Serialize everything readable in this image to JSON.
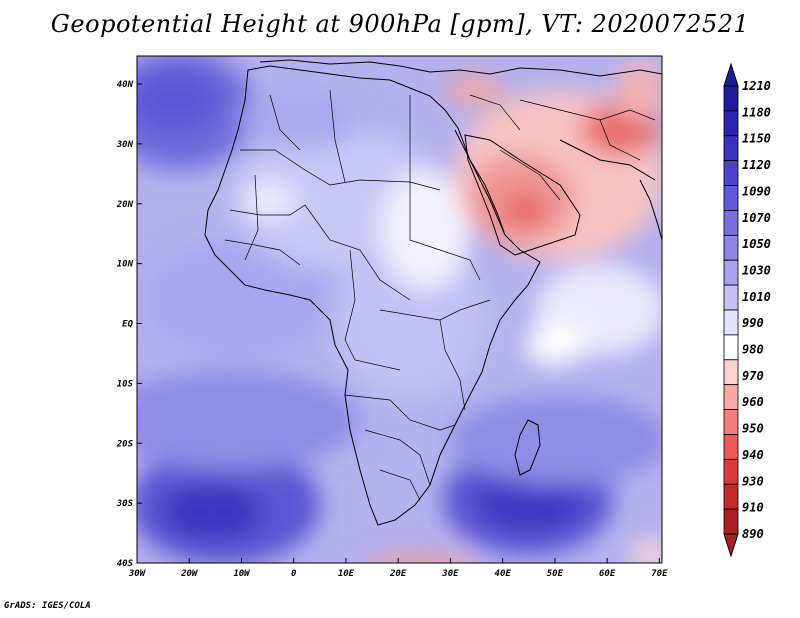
{
  "title": "Geopotential Height at 900hPa [gpm], VT: 2020072521",
  "credit": "GrADS: IGES/COLA",
  "colors": {
    "ocean_base": "#b9b6ef",
    "land_base": "#cfcdf6",
    "high_dark": "#3f36c4",
    "low_red": "#e8585c",
    "border": "#000000"
  },
  "map": {
    "lon_labels": [
      "30W",
      "20W",
      "10W",
      "0",
      "10E",
      "20E",
      "30E",
      "40E",
      "50E",
      "60E",
      "70E"
    ],
    "lat_labels": [
      "40N",
      "30N",
      "20N",
      "10N",
      "EQ",
      "10S",
      "20S",
      "30S",
      "40S"
    ]
  },
  "colorbar": {
    "labels": [
      "1210",
      "1180",
      "1150",
      "1120",
      "1090",
      "1070",
      "1050",
      "1030",
      "1010",
      "990",
      "980",
      "970",
      "960",
      "950",
      "940",
      "930",
      "910",
      "890"
    ],
    "colors": [
      "#1e1a9a",
      "#2a24ab",
      "#3a33bd",
      "#4c45cb",
      "#5f59d5",
      "#7470de",
      "#8a87e5",
      "#a6a3ee",
      "#c3c1f6",
      "#e4e3fc",
      "#ffffff",
      "#fdd0d0",
      "#f8a6a6",
      "#f27d7d",
      "#eb5a5a",
      "#d93a3a",
      "#c42a2a",
      "#a81f1f"
    ]
  }
}
